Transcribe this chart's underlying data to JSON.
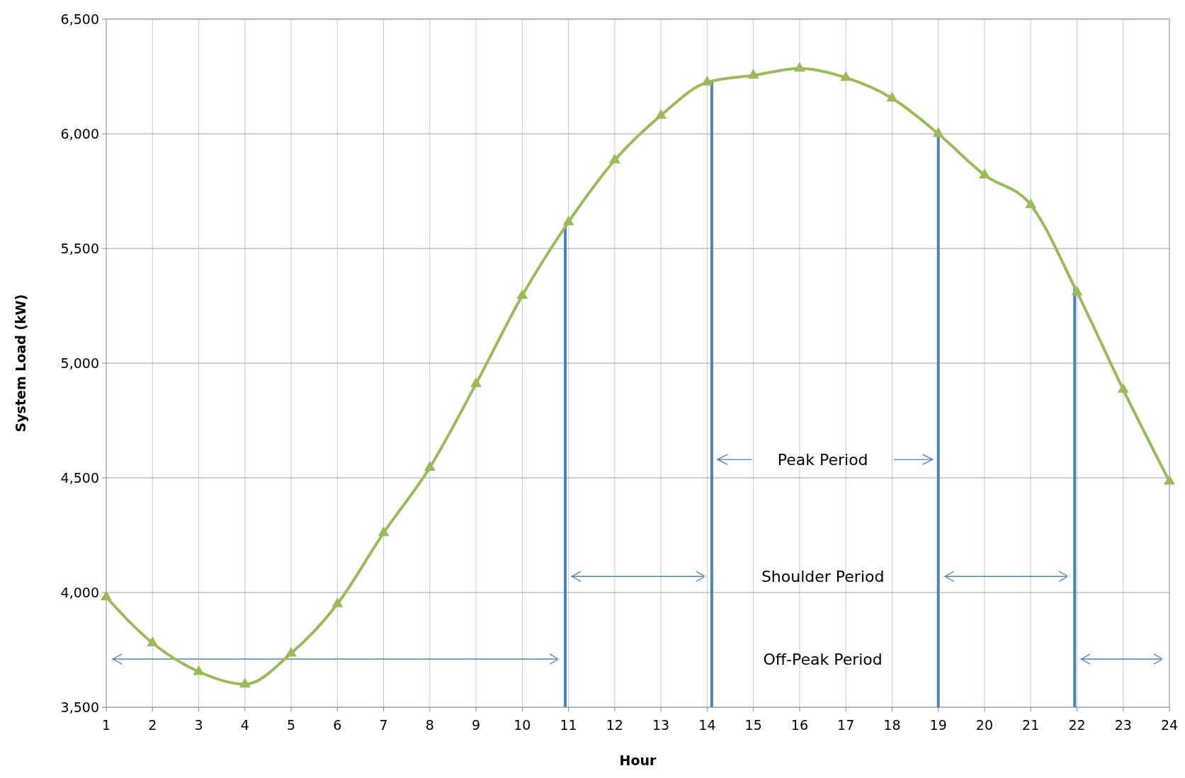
{
  "chart_data": {
    "type": "line",
    "xlabel": "Hour",
    "ylabel": "System Load (kW)",
    "x": [
      1,
      2,
      3,
      4,
      5,
      6,
      7,
      8,
      9,
      10,
      11,
      12,
      13,
      14,
      15,
      16,
      17,
      18,
      19,
      20,
      21,
      22,
      23,
      24
    ],
    "series": [
      {
        "color": "#9bbb59",
        "values": [
          3980,
          3780,
          3655,
          3600,
          3735,
          3950,
          4260,
          4545,
          4910,
          5295,
          5615,
          5885,
          6080,
          6225,
          6255,
          6285,
          6245,
          6155,
          6000,
          5820,
          5690,
          5310,
          4885,
          4485
        ]
      }
    ],
    "xlim": [
      1,
      24
    ],
    "xticks": [
      1,
      2,
      3,
      4,
      5,
      6,
      7,
      8,
      9,
      10,
      11,
      12,
      13,
      14,
      15,
      16,
      17,
      18,
      19,
      20,
      21,
      22,
      23,
      24
    ],
    "ylim": [
      3500,
      6500
    ],
    "yticks": [
      {
        "value": 3500,
        "label": "3,500"
      },
      {
        "value": 4000,
        "label": "4,000"
      },
      {
        "value": 4500,
        "label": "4,500"
      },
      {
        "value": 5000,
        "label": "5,000"
      },
      {
        "value": 5500,
        "label": "5,500"
      },
      {
        "value": 6000,
        "label": "6,000"
      },
      {
        "value": 6500,
        "label": "6,500"
      }
    ],
    "grid": true,
    "marker": "triangle",
    "line_style": "solid",
    "ref_lines": [
      {
        "axis": "x",
        "value": 10.93,
        "color": "#4f81bd"
      },
      {
        "axis": "x",
        "value": 14.1,
        "color": "#4f81bd"
      },
      {
        "axis": "x",
        "value": 19,
        "color": "#4f81bd"
      },
      {
        "axis": "x",
        "value": 21.95,
        "color": "#4f81bd"
      }
    ],
    "annotations": [
      "Peak Period",
      "Shoulder Period",
      "Off-Peak Period"
    ]
  }
}
